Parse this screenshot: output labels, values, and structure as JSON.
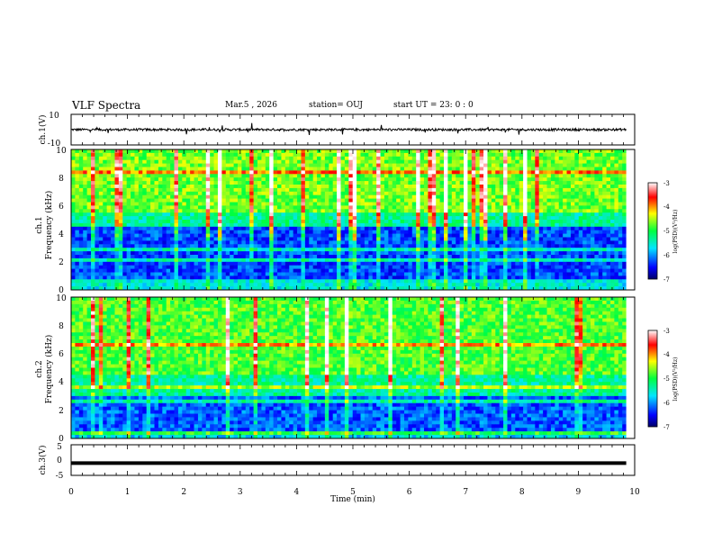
{
  "header": {
    "title": "VLF Spectra",
    "date": "Mar.5 , 2026",
    "station": "station= OUJ",
    "start": "start UT =  23: 0 : 0"
  },
  "chart_data": [
    {
      "type": "line",
      "panel": "ch1-waveform",
      "ylabel": "ch.1(V)",
      "ylim": [
        -10,
        10
      ],
      "yticks": [
        "10",
        "-10"
      ],
      "xlim": [
        0,
        10
      ],
      "series": [
        {
          "baseline": 0,
          "noise_amplitude": 1.5,
          "x_end": 9.85
        }
      ]
    },
    {
      "type": "heatmap",
      "panel": "ch1-spectrogram",
      "ylabel_top": "ch.1",
      "ylabel": "Frequency (kHz)",
      "ylim": [
        0,
        10
      ],
      "yticks": [
        "0",
        "2",
        "4",
        "6",
        "8",
        "10"
      ],
      "xlim": [
        0,
        10
      ],
      "data_x_end": 9.85,
      "colorbar": {
        "label": "log(PSD)(V²/Hz)",
        "range": [
          -7,
          -3
        ],
        "ticks": [
          "-3",
          "-4",
          "-5",
          "-6",
          "-7"
        ]
      }
    },
    {
      "type": "heatmap",
      "panel": "ch2-spectrogram",
      "ylabel_top": "ch.2",
      "ylabel": "Frequency (kHz)",
      "ylim": [
        0,
        10
      ],
      "yticks": [
        "0",
        "2",
        "4",
        "6",
        "8",
        "10"
      ],
      "xlim": [
        0,
        10
      ],
      "data_x_end": 9.85,
      "colorbar": {
        "label": "log(PSD)(V²/Hz)",
        "range": [
          -7,
          -3
        ],
        "ticks": [
          "-3",
          "-4",
          "-5",
          "-6",
          "-7"
        ]
      }
    },
    {
      "type": "line",
      "panel": "ch3-waveform",
      "ylabel": "ch.3(V)",
      "ylim": [
        -5,
        5
      ],
      "yticks": [
        "5",
        "0",
        "-5"
      ],
      "xlim": [
        0,
        10
      ],
      "xlabel": "Time (min)",
      "xticks": [
        "0",
        "1",
        "2",
        "3",
        "4",
        "5",
        "6",
        "7",
        "8",
        "9",
        "10"
      ],
      "series": [
        {
          "value": -1,
          "x_end": 9.85
        }
      ]
    }
  ]
}
